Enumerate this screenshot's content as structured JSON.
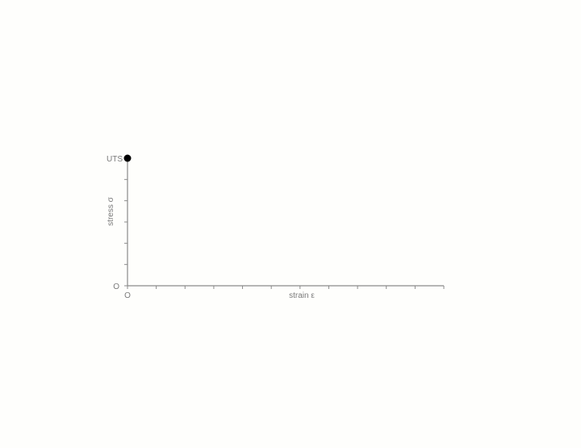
{
  "chart_data": {
    "type": "line",
    "title": "",
    "xlabel": "strain ε",
    "ylabel": "stress σ",
    "x_origin_label": "O",
    "y_origin_label": "O",
    "y_top_label": "UTS",
    "x_minor_ticks": 11,
    "y_minor_ticks": 6,
    "series": [
      {
        "points": [
          {
            "x": 0,
            "y": 1
          }
        ]
      }
    ],
    "xlim": [
      0,
      1
    ],
    "ylim": [
      0,
      1
    ],
    "grid": false,
    "colors": {
      "axis": "#8a8a8a",
      "text": "#7a7a7a",
      "point": "#000000",
      "background": "#fefefc"
    }
  }
}
